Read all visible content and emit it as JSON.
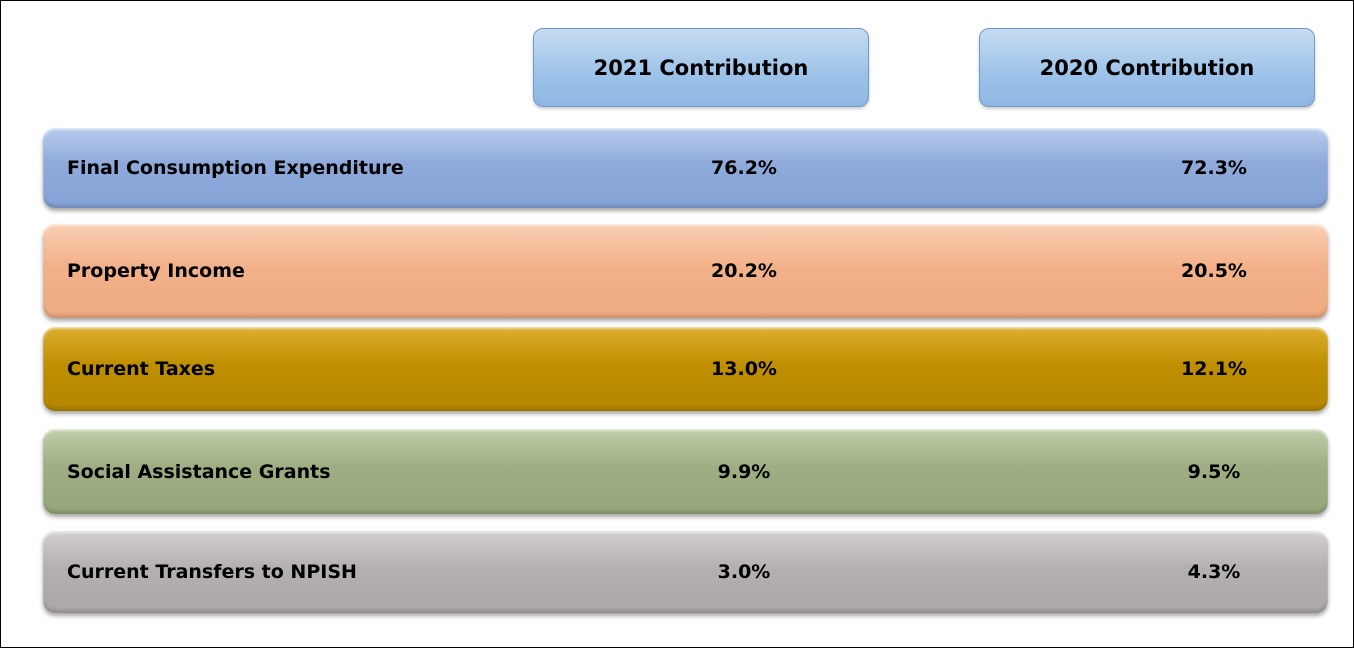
{
  "header": {
    "columns": [
      "2021 Contribution",
      "2020 Contribution"
    ]
  },
  "table": {
    "rows": [
      [
        "Final Consumption Expenditure",
        "76.2%",
        "72.3%"
      ],
      [
        "Property Income",
        "20.2%",
        "20.5%"
      ],
      [
        "Current Taxes",
        "13.0%",
        "12.1%"
      ],
      [
        "Social Assistance Grants",
        "9.9%",
        "9.5%"
      ],
      [
        "Current Transfers to NPISH",
        "3.0%",
        "4.3%"
      ]
    ]
  }
}
